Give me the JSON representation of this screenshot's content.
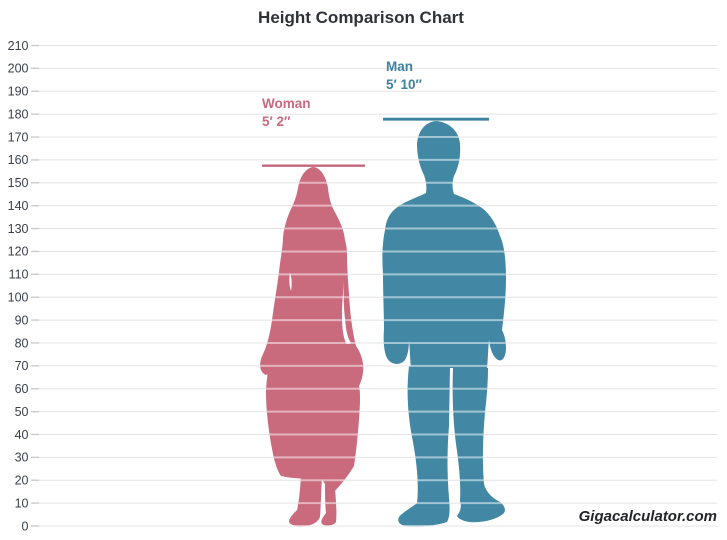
{
  "title": "Height Comparison Chart",
  "branding": "Gigacalculator.com",
  "figures": {
    "woman": {
      "label": "Woman",
      "height_label": "5′ 2″",
      "height_cm": 157.48,
      "color": "#c96b7d",
      "line_color": "#c4677b"
    },
    "man": {
      "label": "Man",
      "height_label": "5′ 10″",
      "height_cm": 177.8,
      "color": "#4288a4",
      "line_color": "#3d83a0"
    }
  },
  "chart_data": {
    "type": "bar",
    "title": "Height Comparison Chart",
    "categories": [
      "Woman",
      "Man"
    ],
    "values": [
      157.48,
      177.8
    ],
    "value_labels": [
      "5′ 2″",
      "5′ 10″"
    ],
    "series": [
      {
        "name": "Woman",
        "values": [
          157.48
        ],
        "label": "5′ 2″",
        "color": "#c96b7d"
      },
      {
        "name": "Man",
        "values": [
          177.8
        ],
        "label": "5′ 10″",
        "color": "#4288a4"
      }
    ],
    "xlabel": "",
    "ylabel": "",
    "ylim": [
      0,
      210
    ],
    "yticks": [
      "0",
      "10",
      "20",
      "30",
      "40",
      "50",
      "60",
      "70",
      "80",
      "90",
      "100",
      "110",
      "120",
      "130",
      "140",
      "150",
      "160",
      "170",
      "180",
      "190",
      "200",
      "210"
    ],
    "grid": true,
    "legend_position": "none",
    "gridline_color": "#e4e4e4",
    "tick_color": "#c9c9c9"
  }
}
